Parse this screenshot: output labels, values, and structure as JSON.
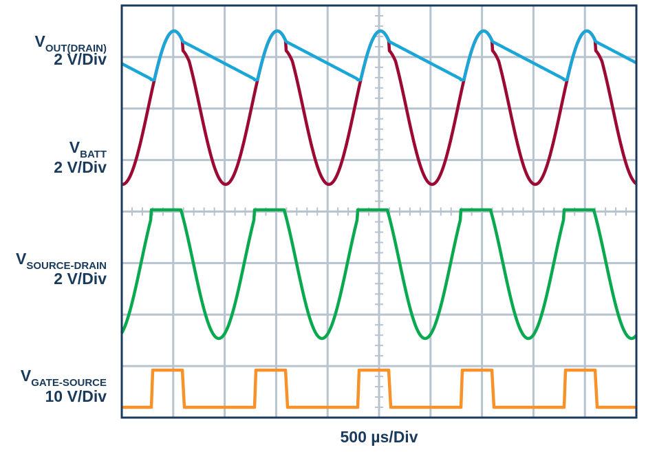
{
  "channels": [
    {
      "symbol": "V",
      "sub": "OUT(DRAIN)",
      "scale": "2 V/Div"
    },
    {
      "symbol": "V",
      "sub": "BATT",
      "scale": "2 V/Div"
    },
    {
      "symbol": "V",
      "sub": "SOURCE-DRAIN",
      "scale": "2 V/Div"
    },
    {
      "symbol": "V",
      "sub": "GATE-SOURCE",
      "scale": "10 V/Div"
    }
  ],
  "time_scale": "500 µs/Div"
}
